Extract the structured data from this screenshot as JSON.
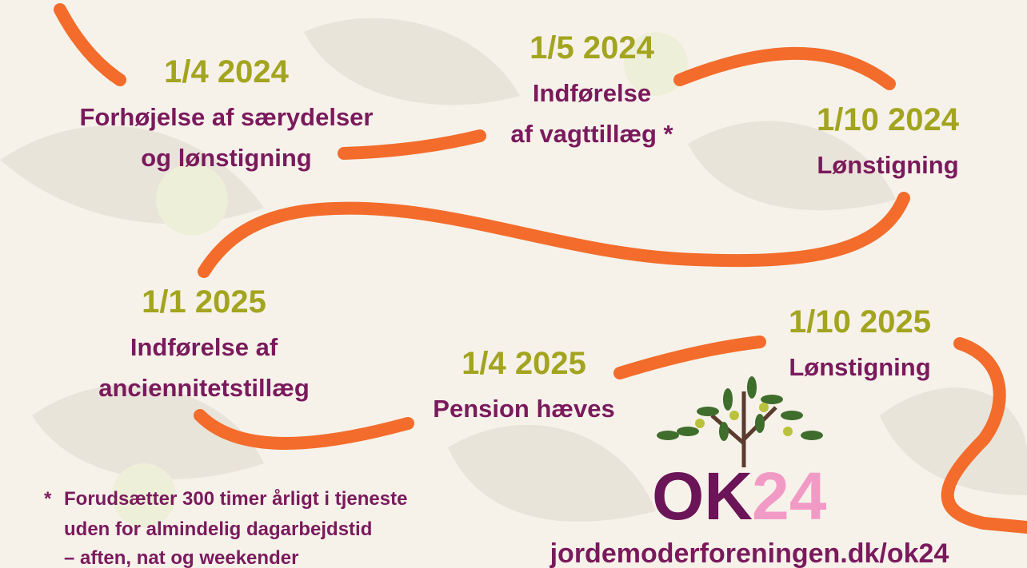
{
  "events": [
    {
      "date": "1/4 2024",
      "lines": [
        "Forhøjelse af særydelser",
        "og lønstigning"
      ]
    },
    {
      "date": "1/5 2024",
      "lines": [
        "Indførelse",
        "af vagttillæg *"
      ]
    },
    {
      "date": "1/10 2024",
      "lines": [
        "Lønstigning"
      ]
    },
    {
      "date": "1/1 2025",
      "lines": [
        "Indførelse af",
        "anciennitetstillæg"
      ]
    },
    {
      "date": "1/4 2025",
      "lines": [
        "Pension hæves"
      ]
    },
    {
      "date": "1/10 2025",
      "lines": [
        "Lønstigning"
      ]
    }
  ],
  "footnote": {
    "marker": "*",
    "lines": [
      "Forudsætter 300 timer årligt i tjeneste",
      "uden for almindelig dagarbejdstid",
      "– aften, nat og weekender"
    ]
  },
  "logo": {
    "letters": "OK",
    "number": "24"
  },
  "url": "jordemoderforeningen.dk/ok24"
}
